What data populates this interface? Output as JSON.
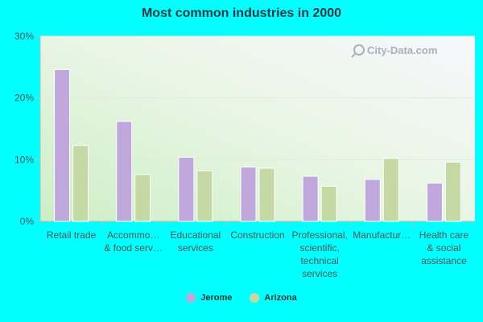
{
  "chart_data": {
    "type": "bar",
    "title": "Most common industries in 2000",
    "categories": [
      "Retail trade",
      "Accommo… & food serv…",
      "Educational services",
      "Construction",
      "Professional, scientific, technical services",
      "Manufactur…",
      "Health care & social assistance"
    ],
    "category_lines": [
      [
        "Retail trade"
      ],
      [
        "Accommo…",
        "& food serv…"
      ],
      [
        "Educational",
        "services"
      ],
      [
        "Construction"
      ],
      [
        "Professional,",
        "scientific,",
        "technical",
        "services"
      ],
      [
        "Manufactur…"
      ],
      [
        "Health care",
        "& social",
        "assistance"
      ]
    ],
    "series": [
      {
        "name": "Jerome",
        "values": [
          24.6,
          16.2,
          10.4,
          8.8,
          7.3,
          6.8,
          6.2
        ]
      },
      {
        "name": "Arizona",
        "values": [
          12.3,
          7.6,
          8.2,
          8.6,
          5.7,
          10.2,
          9.6
        ]
      }
    ],
    "ylim": [
      0,
      30
    ],
    "yticks": [
      "0%",
      "10%",
      "20%",
      "30%"
    ],
    "ytick_values": [
      0,
      10,
      20,
      30
    ],
    "grid": true,
    "legend_position": "bottom",
    "watermark": "City-Data.com",
    "colors": {
      "page_bg": "#00ffff",
      "series": [
        "#c0a8dc",
        "#c5d9a4"
      ],
      "axis": "#bbbbbb",
      "grid": "#e3eadb",
      "tick_text": "#555555",
      "watermark": "#9aa6b2"
    }
  }
}
